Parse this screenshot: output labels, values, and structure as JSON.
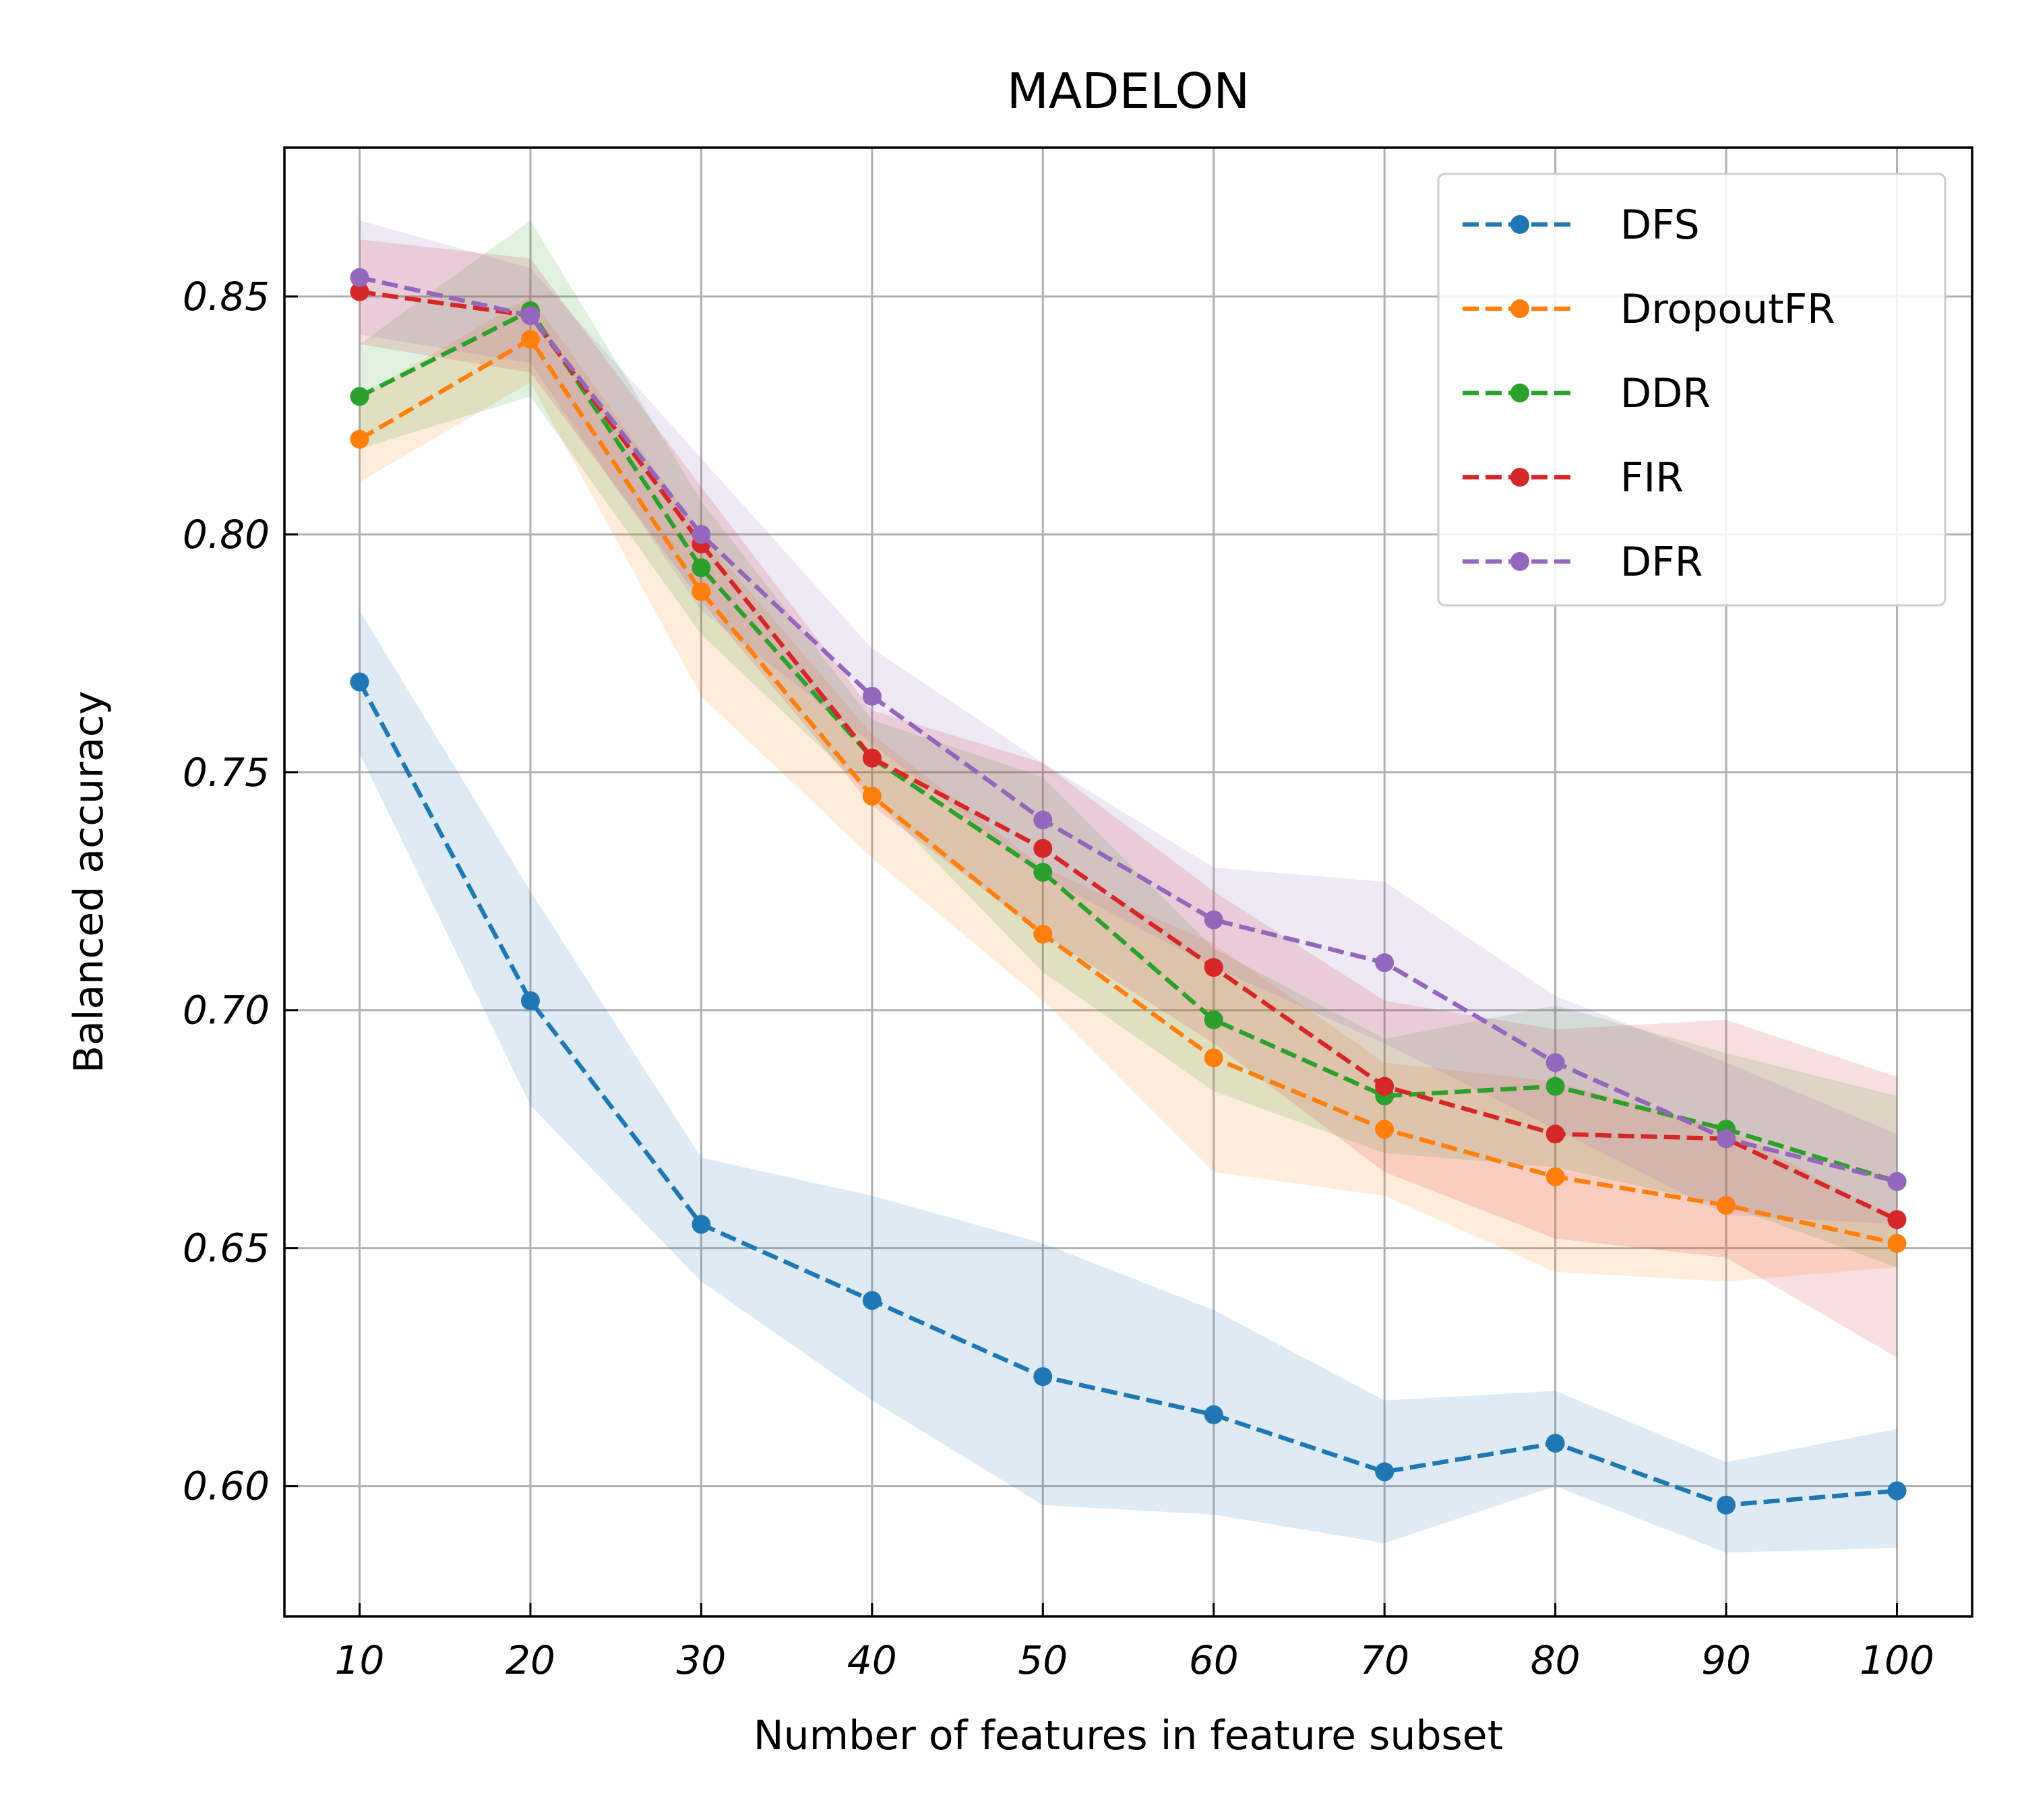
{
  "chart_data": {
    "type": "line",
    "title": "MADELON",
    "xlabel": "Number of features in feature subset",
    "ylabel": "Balanced accuracy",
    "x": [
      10,
      20,
      30,
      40,
      50,
      60,
      70,
      80,
      90,
      100
    ],
    "xlim": [
      5.6,
      104.4
    ],
    "ylim": [
      0.5726,
      0.8813
    ],
    "xticks": [
      10,
      20,
      30,
      40,
      50,
      60,
      70,
      80,
      90,
      100
    ],
    "xtick_labels": [
      "10",
      "20",
      "30",
      "40",
      "50",
      "60",
      "70",
      "80",
      "90",
      "100"
    ],
    "yticks": [
      0.6,
      0.65,
      0.7,
      0.75,
      0.8,
      0.85
    ],
    "ytick_labels": [
      "0.60",
      "0.65",
      "0.70",
      "0.75",
      "0.80",
      "0.85"
    ],
    "grid": true,
    "legend_position": "top-right",
    "series": [
      {
        "name": "DFS",
        "color": "#1f77b4",
        "values": [
          0.769,
          0.702,
          0.655,
          0.639,
          0.623,
          0.615,
          0.603,
          0.609,
          0.596,
          0.599
        ],
        "lower": [
          0.754,
          0.68,
          0.643,
          0.618,
          0.596,
          0.594,
          0.588,
          0.6,
          0.586,
          0.587
        ],
        "upper": [
          0.784,
          0.725,
          0.669,
          0.661,
          0.651,
          0.637,
          0.618,
          0.62,
          0.605,
          0.612
        ]
      },
      {
        "name": "DropoutFR",
        "color": "#ff7f0e",
        "values": [
          0.82,
          0.841,
          0.788,
          0.745,
          0.716,
          0.69,
          0.675,
          0.665,
          0.659,
          0.651
        ],
        "lower": [
          0.811,
          0.832,
          0.766,
          0.732,
          0.702,
          0.666,
          0.661,
          0.645,
          0.643,
          0.646
        ],
        "upper": [
          0.829,
          0.85,
          0.8,
          0.758,
          0.73,
          0.714,
          0.689,
          0.685,
          0.675,
          0.656
        ]
      },
      {
        "name": "DDR",
        "color": "#2ca02c",
        "values": [
          0.829,
          0.847,
          0.793,
          0.753,
          0.729,
          0.698,
          0.682,
          0.684,
          0.675,
          0.664
        ],
        "lower": [
          0.818,
          0.829,
          0.779,
          0.745,
          0.708,
          0.683,
          0.67,
          0.667,
          0.659,
          0.646
        ],
        "upper": [
          0.84,
          0.866,
          0.807,
          0.761,
          0.749,
          0.713,
          0.694,
          0.701,
          0.691,
          0.682
        ]
      },
      {
        "name": "FIR",
        "color": "#d62728",
        "values": [
          0.851,
          0.846,
          0.798,
          0.753,
          0.734,
          0.709,
          0.684,
          0.674,
          0.673,
          0.656
        ],
        "lower": [
          0.84,
          0.834,
          0.786,
          0.743,
          0.716,
          0.693,
          0.666,
          0.652,
          0.648,
          0.627
        ],
        "upper": [
          0.862,
          0.858,
          0.81,
          0.763,
          0.752,
          0.725,
          0.702,
          0.696,
          0.698,
          0.686
        ]
      },
      {
        "name": "DFR",
        "color": "#9467bd",
        "values": [
          0.854,
          0.846,
          0.8,
          0.766,
          0.74,
          0.719,
          0.71,
          0.689,
          0.673,
          0.664
        ],
        "lower": [
          0.842,
          0.836,
          0.784,
          0.756,
          0.728,
          0.709,
          0.693,
          0.675,
          0.657,
          0.655
        ],
        "upper": [
          0.866,
          0.856,
          0.816,
          0.776,
          0.752,
          0.73,
          0.727,
          0.703,
          0.689,
          0.674
        ]
      }
    ]
  }
}
